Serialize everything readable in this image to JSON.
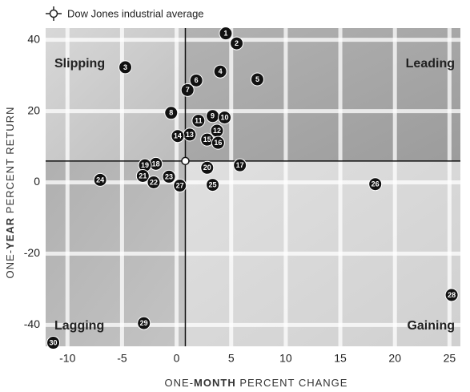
{
  "chart_data": {
    "type": "scatter",
    "legend": "Dow Jones industrial average",
    "xlabel": [
      "ONE-",
      "MONTH",
      " PERCENT CHANGE"
    ],
    "ylabel": [
      "ONE-",
      "YEAR",
      " PERCENT RETURN"
    ],
    "quadrants": {
      "top_left": "Slipping",
      "top_right": "Leading",
      "bottom_left": "Lagging",
      "bottom_right": "Gaining"
    },
    "benchmark": {
      "x": 0.8,
      "y": 6
    },
    "labels": [
      "1",
      "2",
      "3",
      "4",
      "5",
      "6",
      "7",
      "8",
      "9",
      "10",
      "11",
      "12",
      "13",
      "14",
      "15",
      "16",
      "17",
      "18",
      "19",
      "20",
      "21",
      "22",
      "23",
      "24",
      "25",
      "26",
      "27",
      "28",
      "29",
      "30"
    ],
    "x": [
      4.5,
      5.5,
      -4.7,
      4.0,
      7.4,
      1.8,
      1.0,
      -0.5,
      3.3,
      4.4,
      2.0,
      3.7,
      1.2,
      0.1,
      2.8,
      3.8,
      5.8,
      -1.9,
      -2.9,
      2.8,
      -3.1,
      -2.1,
      -0.7,
      -7.0,
      3.3,
      18.2,
      0.3,
      25.2,
      -3.0,
      -11.3
    ],
    "y": [
      41.8,
      39,
      32.3,
      31.1,
      28.9,
      28.6,
      25.9,
      19.5,
      18.6,
      18.2,
      17.3,
      14.5,
      13.4,
      13,
      12,
      11.1,
      4.8,
      5.2,
      4.8,
      4.1,
      1.8,
      0,
      1.6,
      0.7,
      -0.7,
      -0.5,
      -0.9,
      -31.6,
      -39.5,
      -45
    ],
    "color": "#111111",
    "xlim": [
      -12,
      26
    ],
    "ylim": [
      -46,
      43.3
    ],
    "xticks": [
      -10,
      -5,
      0,
      5,
      10,
      15,
      20,
      25
    ],
    "yticks": [
      -40,
      -20,
      0,
      20,
      40
    ],
    "grid": true
  }
}
